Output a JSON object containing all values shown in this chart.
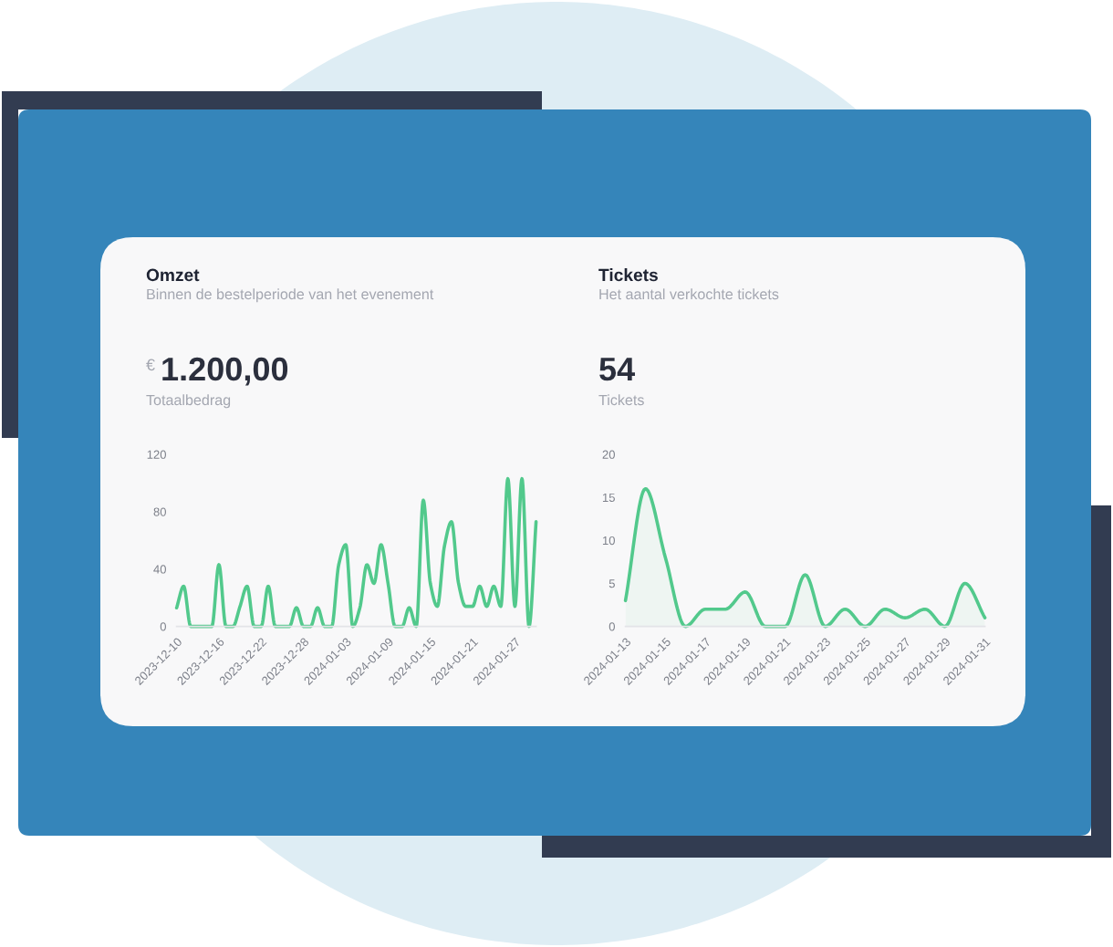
{
  "chart_data": [
    {
      "type": "line",
      "title": "Omzet",
      "subtitle": "Binnen de bestelperiode van het evenement",
      "annotations": [
        "€",
        "1.200,00",
        "Totaalbedrag"
      ],
      "x": [
        "2023-12-10",
        "2023-12-11",
        "2023-12-12",
        "2023-12-13",
        "2023-12-14",
        "2023-12-15",
        "2023-12-16",
        "2023-12-17",
        "2023-12-18",
        "2023-12-19",
        "2023-12-20",
        "2023-12-21",
        "2023-12-22",
        "2023-12-23",
        "2023-12-24",
        "2023-12-25",
        "2023-12-26",
        "2023-12-27",
        "2023-12-28",
        "2023-12-29",
        "2023-12-30",
        "2023-12-31",
        "2024-01-01",
        "2024-01-02",
        "2024-01-03",
        "2024-01-04",
        "2024-01-05",
        "2024-01-06",
        "2024-01-07",
        "2024-01-08",
        "2024-01-09",
        "2024-01-10",
        "2024-01-11",
        "2024-01-12",
        "2024-01-13",
        "2024-01-14",
        "2024-01-15",
        "2024-01-16",
        "2024-01-17",
        "2024-01-18",
        "2024-01-19",
        "2024-01-20",
        "2024-01-21",
        "2024-01-22",
        "2024-01-23",
        "2024-01-24",
        "2024-01-25",
        "2024-01-26",
        "2024-01-27",
        "2024-01-28",
        "2024-01-29",
        "2024-01-30"
      ],
      "series": [
        {
          "color": "#52c98c",
          "values": [
            13,
            28,
            0,
            0,
            0,
            0,
            43,
            0,
            0,
            14,
            28,
            0,
            0,
            28,
            0,
            0,
            0,
            13,
            0,
            0,
            13,
            0,
            0,
            43,
            57,
            0,
            13,
            43,
            30,
            57,
            30,
            0,
            0,
            13,
            0,
            88,
            30,
            14,
            56,
            73,
            30,
            14,
            14,
            28,
            14,
            28,
            14,
            103,
            14,
            103,
            0,
            73
          ]
        }
      ],
      "xlim": [
        "2023-12-10",
        "2024-01-30"
      ],
      "xticks": [
        "2023-12-10",
        "2023-12-16",
        "2023-12-22",
        "2023-12-28",
        "2024-01-03",
        "2024-01-09",
        "2024-01-15",
        "2024-01-21",
        "2024-01-27"
      ],
      "ylim": [
        0,
        120
      ],
      "yticks": [
        0,
        40,
        80,
        120
      ]
    },
    {
      "type": "area",
      "title": "Tickets",
      "subtitle": "Het aantal verkochte tickets",
      "annotations": [
        "54",
        "Tickets"
      ],
      "x": [
        "2024-01-13",
        "2024-01-14",
        "2024-01-15",
        "2024-01-16",
        "2024-01-17",
        "2024-01-18",
        "2024-01-19",
        "2024-01-20",
        "2024-01-21",
        "2024-01-22",
        "2024-01-23",
        "2024-01-24",
        "2024-01-25",
        "2024-01-26",
        "2024-01-27",
        "2024-01-28",
        "2024-01-29",
        "2024-01-30",
        "2024-01-31"
      ],
      "series": [
        {
          "color": "#52c98c",
          "values": [
            3,
            16,
            8,
            0,
            2,
            2,
            4,
            0,
            0,
            6,
            0,
            2,
            0,
            2,
            1,
            2,
            0,
            5,
            1
          ]
        }
      ],
      "xlim": [
        "2024-01-13",
        "2024-01-31"
      ],
      "xticks": [
        "2024-01-13",
        "2024-01-15",
        "2024-01-17",
        "2024-01-19",
        "2024-01-21",
        "2024-01-23",
        "2024-01-25",
        "2024-01-27",
        "2024-01-29",
        "2024-01-31"
      ],
      "ylim": [
        0,
        20
      ],
      "yticks": [
        0,
        5,
        10,
        15,
        20
      ]
    }
  ]
}
